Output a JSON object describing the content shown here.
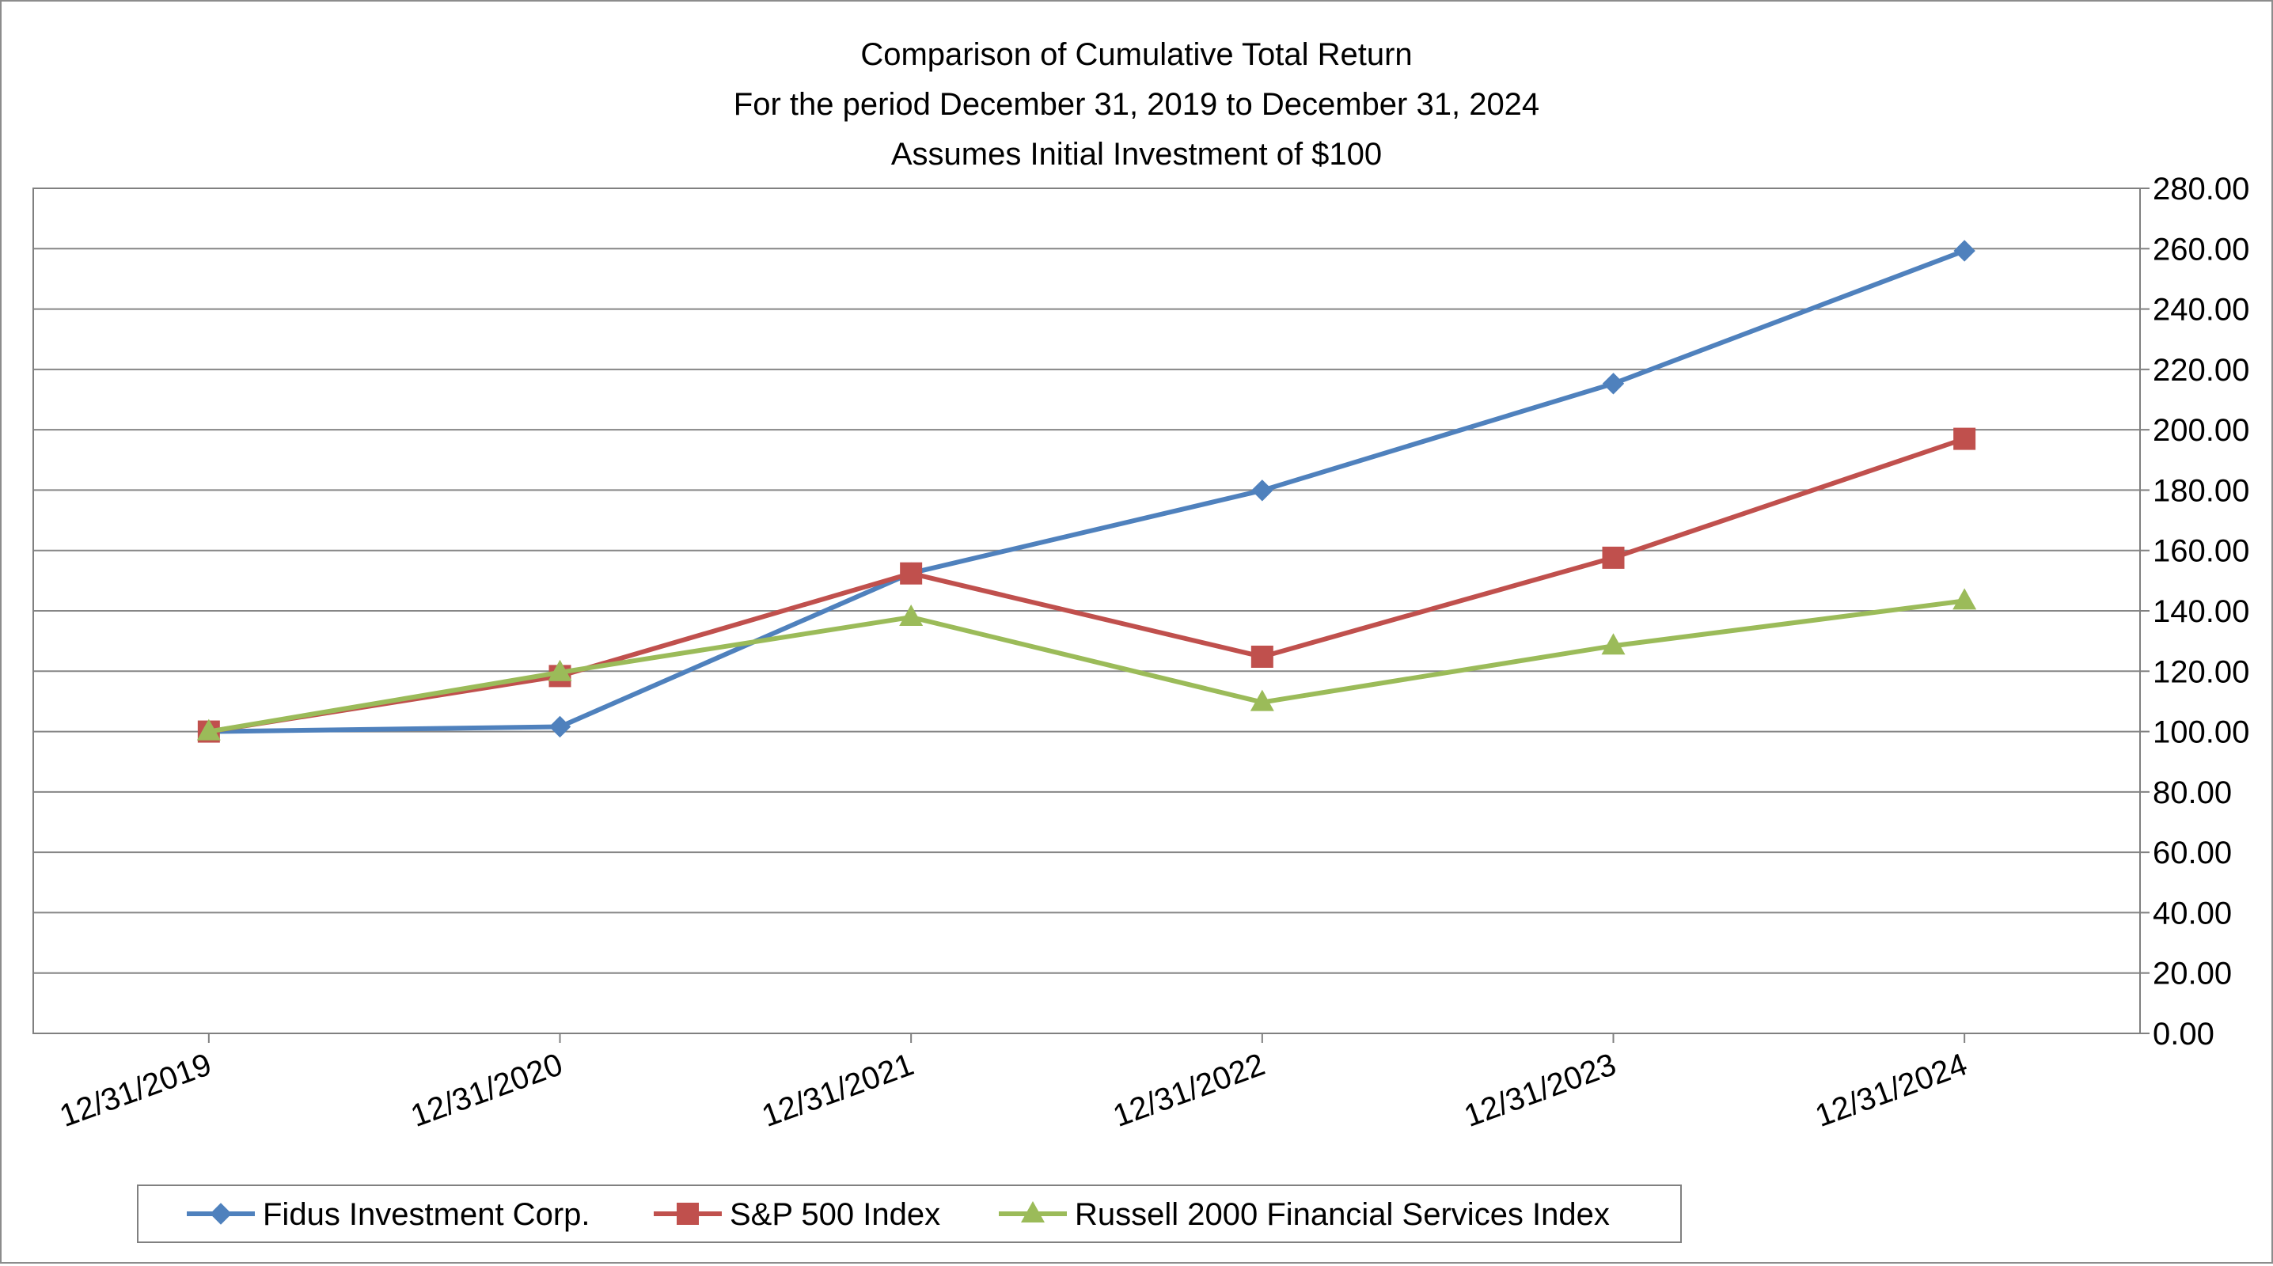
{
  "chart_data": {
    "type": "line",
    "title": [
      "Comparison of Cumulative Total Return",
      "For the period December 31, 2019 to December 31, 2024",
      "Assumes Initial Investment of $100"
    ],
    "xlabel": "",
    "ylabel": "",
    "categories": [
      "12/31/2019",
      "12/31/2020",
      "12/31/2021",
      "12/31/2022",
      "12/31/2023",
      "12/31/2024"
    ],
    "ylim": [
      0,
      280
    ],
    "y_ticks": [
      "0.00",
      "20.00",
      "40.00",
      "60.00",
      "80.00",
      "100.00",
      "120.00",
      "140.00",
      "160.00",
      "180.00",
      "200.00",
      "220.00",
      "240.00",
      "260.00",
      "280.00"
    ],
    "y_axis_side": "right",
    "grid": true,
    "legend_position": "bottom",
    "series": [
      {
        "name": "Fidus Investment Corp.",
        "color": "#4f81bd",
        "marker": "diamond",
        "values": [
          100.0,
          101.6,
          152.5,
          179.9,
          215.3,
          259.3
        ]
      },
      {
        "name": "S&P 500 Index",
        "color": "#c0504d",
        "marker": "square",
        "values": [
          100.0,
          118.4,
          152.4,
          124.8,
          157.6,
          197.0
        ]
      },
      {
        "name": "Russell 2000 Financial Services Index",
        "color": "#9bbb59",
        "marker": "triangle",
        "values": [
          100.0,
          119.6,
          137.9,
          109.7,
          128.4,
          143.3
        ]
      }
    ]
  }
}
